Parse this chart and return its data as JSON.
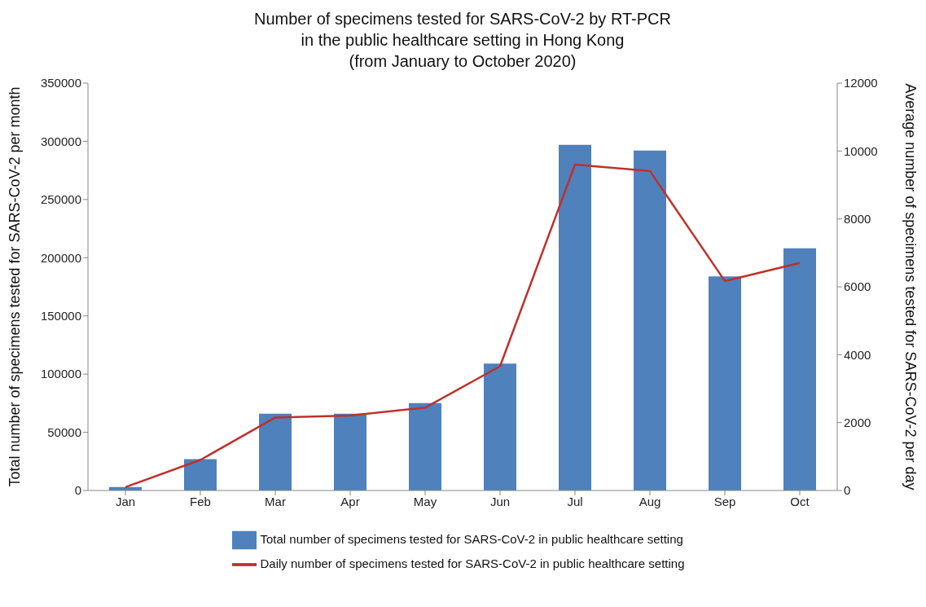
{
  "chart_data": {
    "type": "bar",
    "title": "Number of specimens tested for SARS-CoV-2 by RT-PCR\nin the public healthcare setting in Hong Kong\n(from January to October 2020)",
    "ylabel": "Total number of specimens tested for SARS-CoV-2 per month",
    "y2label": "Average number of specimens tested for SARS-CoV-2 per day",
    "categories": [
      "Jan",
      "Feb",
      "Mar",
      "Apr",
      "May",
      "Jun",
      "Jul",
      "Aug",
      "Sep",
      "Oct"
    ],
    "series": [
      {
        "name": "Total number of specimens tested for SARS-CoV-2 in public healthcare setting",
        "color": "#4f81bd",
        "values": [
          3000,
          27000,
          66000,
          66000,
          75000,
          109000,
          297000,
          292000,
          184000,
          208000
        ]
      },
      {
        "name": "Daily number of specimens tested for SARS-CoV-2 in public healthcare setting",
        "type": "line",
        "axis": "y2",
        "color": "#c0302b",
        "values": [
          100,
          900,
          2150,
          2210,
          2440,
          3660,
          9600,
          9410,
          6170,
          6700
        ]
      }
    ],
    "ylim": [
      0,
      350000
    ],
    "yticks": [
      0,
      50000,
      100000,
      150000,
      200000,
      250000,
      300000,
      350000
    ],
    "y2lim": [
      0,
      12000
    ],
    "y2ticks": [
      0,
      2000,
      4000,
      6000,
      8000,
      10000,
      12000
    ],
    "grid": false,
    "legend": "bottom",
    "marker": "none",
    "line_style": "solid"
  }
}
